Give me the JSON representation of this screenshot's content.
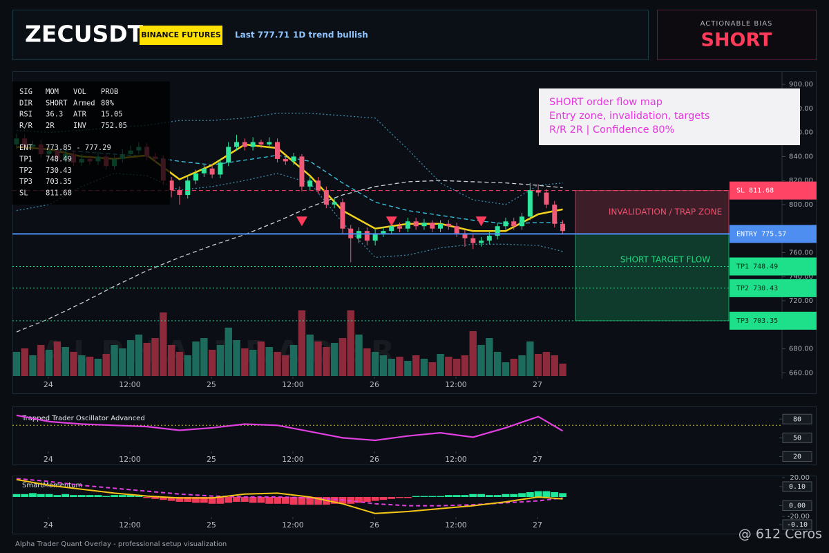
{
  "header": {
    "symbol": "ZECUSDT",
    "exchange": "BINANCE FUTURES",
    "last": "Last 777.71",
    "trend": "1D trend bullish"
  },
  "bias": {
    "label": "ACTIONABLE BIAS",
    "value": "SHORT"
  },
  "stats": {
    "rows": [
      [
        "SIG",
        "MOM",
        "VOL",
        "PROB"
      ],
      [
        "DIR",
        "SHORT",
        "Armed",
        "80%"
      ],
      [
        "RSI",
        "36.3",
        "ATR",
        "15.05"
      ],
      [
        "R/R",
        "2R",
        "INV",
        "752.05"
      ],
      [
        "ENT",
        "773.85 - 777.29"
      ],
      [
        "TP1",
        "748.49"
      ],
      [
        "TP2",
        "730.43"
      ],
      [
        "TP3",
        "703.35"
      ],
      [
        "SL",
        "811.68"
      ]
    ]
  },
  "note": {
    "lines": [
      "SHORT order flow map",
      "Entry zone, invalidation, targets",
      "R/R 2R | Confidence 80%"
    ]
  },
  "chart_data": [
    {
      "type": "candlestick",
      "watermark": "ALPHA TRADER",
      "xlim": [
        -0.5,
        93.9
      ],
      "xticks": [
        {
          "value": 3.9,
          "label": "24"
        },
        {
          "value": 13.9,
          "label": "12:00"
        },
        {
          "value": 23.9,
          "label": "25"
        },
        {
          "value": 33.9,
          "label": "12:00"
        },
        {
          "value": 43.9,
          "label": "26"
        },
        {
          "value": 53.9,
          "label": "12:00"
        },
        {
          "value": 63.9,
          "label": "27"
        }
      ],
      "ylim": [
        655,
        911
      ],
      "yticks": [
        {
          "value": 660,
          "label": "660.00"
        },
        {
          "value": 680,
          "label": "680.00"
        },
        {
          "value": 700,
          "label": "700.00"
        },
        {
          "value": 720,
          "label": "720.00"
        },
        {
          "value": 740,
          "label": "740.00"
        },
        {
          "value": 760,
          "label": "760.00"
        },
        {
          "value": 780,
          "label": "780.00"
        },
        {
          "value": 800,
          "label": "800.00"
        },
        {
          "value": 820,
          "label": "820.00"
        },
        {
          "value": 840,
          "label": "840.00"
        },
        {
          "value": 860,
          "label": "860.00"
        },
        {
          "value": 880,
          "label": "880.00"
        },
        {
          "value": 900,
          "label": "900.00"
        }
      ],
      "up_color": "#2ee59d",
      "down_color": "#f05a78",
      "volume_up_color": "#1d6b5c",
      "volume_down_color": "#8c2a3c",
      "open": [
        850,
        855,
        848,
        850,
        842,
        845,
        838,
        842,
        835,
        838,
        836,
        840,
        832,
        838,
        842,
        845,
        848,
        840,
        838,
        820,
        812,
        808,
        820,
        826,
        830,
        825,
        835,
        848,
        852,
        848,
        852,
        850,
        852,
        838,
        836,
        840,
        815,
        820,
        812,
        800,
        802,
        780,
        772,
        778,
        770,
        776,
        778,
        782,
        780,
        786,
        782,
        785,
        780,
        784,
        782,
        776,
        772,
        768,
        770,
        774,
        782,
        786,
        782,
        790,
        812,
        810,
        800,
        784
      ],
      "high": [
        859,
        858,
        853,
        854,
        849,
        848,
        846,
        845,
        842,
        841,
        844,
        843,
        841,
        846,
        849,
        852,
        851,
        843,
        841,
        823,
        815,
        824,
        829,
        833,
        834,
        838,
        852,
        858,
        855,
        856,
        854,
        856,
        855,
        841,
        843,
        842,
        823,
        823,
        815,
        806,
        805,
        783,
        781,
        781,
        779,
        781,
        785,
        785,
        789,
        789,
        788,
        787,
        787,
        787,
        785,
        779,
        775,
        773,
        777,
        785,
        789,
        789,
        793,
        818,
        817,
        813,
        803,
        787
      ],
      "low": [
        846,
        845,
        845,
        839,
        839,
        835,
        835,
        832,
        832,
        833,
        833,
        829,
        829,
        835,
        839,
        842,
        837,
        835,
        816,
        806,
        800,
        805,
        817,
        823,
        822,
        822,
        832,
        845,
        845,
        845,
        847,
        847,
        835,
        833,
        833,
        811,
        812,
        809,
        797,
        797,
        776,
        752,
        768,
        766,
        766,
        773,
        775,
        777,
        777,
        779,
        779,
        777,
        777,
        779,
        773,
        765,
        763,
        765,
        767,
        771,
        779,
        779,
        779,
        787,
        807,
        797,
        781,
        775
      ],
      "close": [
        855,
        848,
        850,
        842,
        845,
        838,
        842,
        835,
        838,
        836,
        840,
        832,
        838,
        842,
        845,
        848,
        840,
        838,
        820,
        812,
        808,
        820,
        826,
        830,
        825,
        835,
        848,
        852,
        848,
        852,
        850,
        852,
        838,
        836,
        840,
        815,
        820,
        812,
        800,
        802,
        780,
        772,
        778,
        770,
        776,
        778,
        782,
        780,
        786,
        782,
        785,
        780,
        784,
        782,
        776,
        772,
        768,
        770,
        774,
        782,
        786,
        782,
        790,
        812,
        810,
        800,
        784,
        778
      ],
      "volume": [
        35,
        40,
        30,
        45,
        38,
        50,
        42,
        35,
        30,
        28,
        25,
        32,
        45,
        40,
        52,
        60,
        48,
        55,
        92,
        45,
        35,
        30,
        50,
        55,
        38,
        45,
        70,
        52,
        40,
        38,
        50,
        42,
        35,
        30,
        45,
        95,
        60,
        50,
        42,
        48,
        55,
        95,
        60,
        40,
        35,
        30,
        25,
        28,
        22,
        30,
        25,
        20,
        32,
        28,
        25,
        30,
        65,
        45,
        55,
        35,
        20,
        25,
        30,
        50,
        32,
        35,
        30,
        18
      ],
      "line_x": [
        0,
        4,
        8,
        12,
        16,
        20,
        24,
        28,
        32,
        36,
        40,
        44,
        48,
        52,
        56,
        60,
        64,
        67
      ],
      "overlays": [
        {
          "color": "#cfd3d6",
          "style": "dashed",
          "values": [
            694,
            705,
            718,
            732,
            745,
            756,
            766,
            775,
            786,
            798,
            808,
            815,
            819,
            820,
            819,
            818,
            816,
            814
          ]
        },
        {
          "color": "#3a8aa8",
          "style": "dotted",
          "values": [
            862,
            860,
            862,
            864,
            866,
            870,
            870,
            872,
            876,
            876,
            874,
            872,
            846,
            818,
            804,
            800,
            816,
            818
          ]
        },
        {
          "color": "#3a8aa8",
          "style": "dotted",
          "values": [
            795,
            800,
            815,
            826,
            824,
            812,
            815,
            820,
            826,
            818,
            785,
            756,
            758,
            764,
            767,
            767,
            766,
            761
          ]
        },
        {
          "color": "#3cc8e6",
          "style": "dashed",
          "values": [
            848,
            846,
            844,
            842,
            840,
            836,
            833,
            837,
            841,
            836,
            818,
            802,
            795,
            791,
            787,
            784,
            785,
            785
          ]
        },
        {
          "color": "#f2d21b",
          "style": "solid",
          "values": [
            848,
            846,
            840,
            838,
            841,
            821,
            833,
            850,
            847,
            824,
            795,
            780,
            784,
            784,
            778,
            778,
            792,
            796
          ]
        }
      ],
      "levels": [
        {
          "name": "SL",
          "value": 811.68,
          "color": "#ff4466",
          "text_color": "#ffffff",
          "style": "dashed"
        },
        {
          "name": "ENTRY",
          "value": 775.57,
          "color": "#4d8ef0",
          "text_color": "#ffffff",
          "style": "solid"
        },
        {
          "name": "TP1",
          "value": 748.49,
          "color": "#1fe08a",
          "text_color": "#062a18",
          "style": "dotted"
        },
        {
          "name": "TP2",
          "value": 730.43,
          "color": "#1fe08a",
          "text_color": "#062a18",
          "style": "dotted"
        },
        {
          "name": "TP3",
          "value": 703.35,
          "color": "#1fe08a",
          "text_color": "#062a18",
          "style": "dotted"
        }
      ],
      "zones": [
        {
          "label": "INVALIDATION / TRAP ZONE",
          "color": "#f0506e"
        },
        {
          "label": "SHORT TARGET FLOW",
          "color": "#1ed982"
        }
      ],
      "signals": {
        "color": "#ff3b5c",
        "x": [
          35,
          46,
          57
        ],
        "values": [
          786,
          786,
          786
        ]
      }
    },
    {
      "type": "line",
      "title": "Trapped Trader Oscillator Advanced",
      "xlim": [
        -0.5,
        93.9
      ],
      "xticks": [
        {
          "value": 3.9,
          "label": "24"
        },
        {
          "value": 13.9,
          "label": "12:00"
        },
        {
          "value": 23.9,
          "label": "25"
        },
        {
          "value": 33.9,
          "label": "12:00"
        },
        {
          "value": 43.9,
          "label": "26"
        },
        {
          "value": 53.9,
          "label": "12:00"
        },
        {
          "value": 63.9,
          "label": "27"
        }
      ],
      "ylim": [
        15,
        98
      ],
      "yticks": [
        80,
        50,
        20
      ],
      "reference_line": 70,
      "reference_color": "#c8c820",
      "line_x": [
        0,
        4,
        8,
        12,
        16,
        20,
        24,
        28,
        32,
        36,
        40,
        44,
        48,
        52,
        56,
        60,
        64,
        67
      ],
      "color": "#e040e0",
      "values": [
        86,
        76,
        72,
        70,
        68,
        62,
        66,
        72,
        70,
        60,
        50,
        46,
        53,
        58,
        51,
        66,
        84,
        61
      ]
    },
    {
      "type": "line",
      "title": "SmartMomentum",
      "xlim": [
        -0.5,
        93.9
      ],
      "xticks": [
        {
          "value": 3.9,
          "label": "24"
        },
        {
          "value": 13.9,
          "label": "12:00"
        },
        {
          "value": 23.9,
          "label": "25"
        },
        {
          "value": 33.9,
          "label": "12:00"
        },
        {
          "value": 43.9,
          "label": "26"
        },
        {
          "value": 53.9,
          "label": "12:00"
        },
        {
          "value": 63.9,
          "label": "27"
        }
      ],
      "ylim": [
        -36.4,
        22.1
      ],
      "yticks": [
        {
          "value": 20,
          "label": "20.00"
        },
        {
          "value": -20,
          "label": "-20.00"
        }
      ],
      "y2lim": [
        -0.14,
        0.158
      ],
      "y2ticks": [
        {
          "value": 0.1,
          "label": "0.10"
        },
        {
          "value": 0,
          "label": "0.00"
        },
        {
          "value": -0.1,
          "label": "-0.10"
        }
      ],
      "histogram": {
        "up_color": "#1ee89a",
        "down_color": "#f03a5a",
        "values": [
          3,
          3,
          4,
          3,
          3,
          2,
          3,
          2,
          2,
          2,
          2,
          1,
          2,
          2,
          2,
          1,
          -1,
          -2,
          -3,
          -4,
          -5,
          -5,
          -6,
          -6,
          -7,
          -7,
          -6,
          -5,
          -5,
          -6,
          -6,
          -7,
          -7,
          -7,
          -8,
          -8,
          -8,
          -8,
          -8,
          -7,
          -7,
          -7,
          -6,
          -5,
          -4,
          -3,
          -2,
          -1,
          -1,
          1,
          1,
          1,
          1,
          2,
          2,
          2,
          3,
          3,
          2,
          2,
          3,
          3,
          4,
          5,
          6,
          6,
          5,
          4
        ]
      },
      "line_x": [
        0,
        4,
        8,
        12,
        16,
        20,
        24,
        28,
        32,
        36,
        40,
        44,
        48,
        52,
        56,
        60,
        64,
        67
      ],
      "lines": [
        {
          "color": "#e040e0",
          "style": "dashed",
          "values": [
            19,
            16,
            12,
            9,
            6,
            3,
            1,
            0,
            0,
            -1,
            -3,
            -7,
            -9,
            -9,
            -8,
            -6,
            -4,
            -1
          ]
        },
        {
          "color": "#f5c518",
          "style": "solid",
          "values": [
            18,
            12,
            8,
            4,
            1,
            -1,
            -1,
            3,
            4,
            0,
            -7,
            -17,
            -15,
            -12,
            -9,
            -5,
            0,
            -2
          ]
        }
      ]
    }
  ],
  "footer": "Alpha Trader Quant Overlay - professional setup visualization",
  "watermark": "@ 612 Ceros"
}
